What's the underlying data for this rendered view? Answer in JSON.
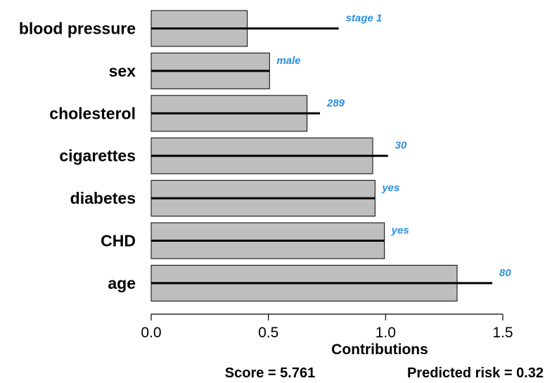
{
  "chart_data": {
    "type": "bar",
    "orientation": "horizontal",
    "categories": [
      "blood pressure",
      "sex",
      "cholesterol",
      "cigarettes",
      "diabetes",
      "CHD",
      "age"
    ],
    "values": [
      0.41,
      0.505,
      0.665,
      0.945,
      0.955,
      0.995,
      1.305
    ],
    "line_values": [
      0.8,
      0.505,
      0.72,
      1.01,
      0.955,
      0.995,
      1.455
    ],
    "value_labels": [
      "stage 1",
      "male",
      "289",
      "30",
      "yes",
      "yes",
      "80"
    ],
    "xlabel": "Contributions",
    "xlim": [
      0,
      1.5
    ],
    "xticks": [
      "0.0",
      "0.5",
      "1.0",
      "1.5"
    ],
    "grid": false,
    "colors": {
      "bar_fill": "#bebebe",
      "bar_stroke": "#000000",
      "line": "#000000",
      "value_label": "#2b8fe0",
      "axis": "#000000"
    }
  },
  "footer": {
    "score": "Score = 5.761",
    "risk": "Predicted risk = 0.32"
  }
}
